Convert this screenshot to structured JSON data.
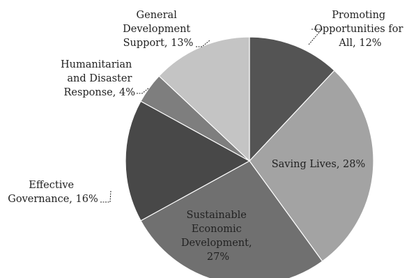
{
  "chart_data": {
    "type": "pie",
    "title": "",
    "start_angle_deg": 0,
    "direction": "clockwise",
    "slices": [
      {
        "lines": [
          "Promoting",
          "Opportunities for",
          "All, 12%"
        ],
        "value": 12,
        "color": "#545454"
      },
      {
        "lines": [
          "Saving Lives, 28%"
        ],
        "value": 28,
        "color": "#a3a3a3"
      },
      {
        "lines": [
          "Sustainable",
          "Economic",
          "Development,",
          "27%"
        ],
        "value": 27,
        "color": "#707070"
      },
      {
        "lines": [
          "Effective",
          "Governance, 16%"
        ],
        "value": 16,
        "color": "#484848"
      },
      {
        "lines": [
          "Humanitarian",
          "and Disaster",
          "Response, 4%"
        ],
        "value": 4,
        "color": "#7e7e7e"
      },
      {
        "lines": [
          "General",
          "Development",
          "Support, 13%"
        ],
        "value": 13,
        "color": "#c4c4c4"
      }
    ]
  }
}
